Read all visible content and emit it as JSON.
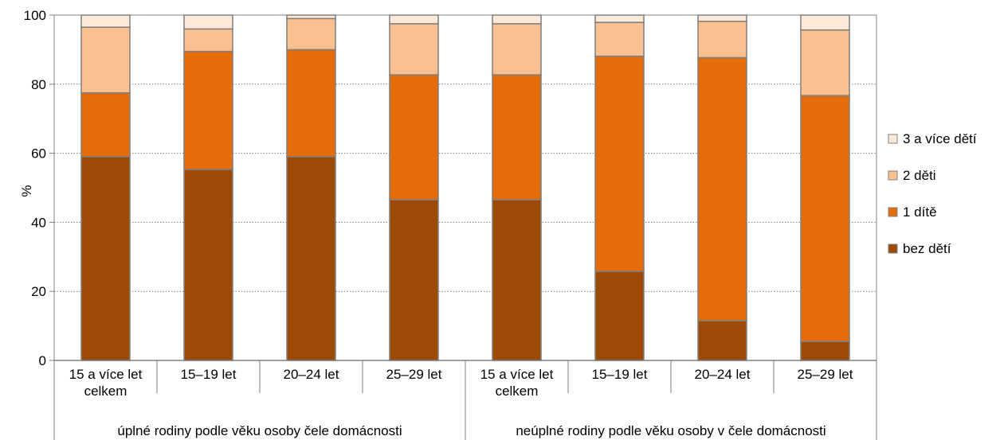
{
  "chart_data": {
    "type": "bar",
    "stacked": true,
    "ylabel": "%",
    "ylim": [
      0,
      100
    ],
    "yticks": [
      0,
      20,
      40,
      60,
      80,
      100
    ],
    "grid": true,
    "legend_position": "right",
    "groups": [
      "úplné rodiny podle věku osoby čele domácnosti",
      "neúplné rodiny podle věku osoby v čele domácnosti"
    ],
    "categories": [
      [
        "15 a více let",
        "celkem"
      ],
      [
        "15–19 let"
      ],
      [
        "20–24 let"
      ],
      [
        "25–29 let"
      ],
      [
        "15 a více let",
        "celkem"
      ],
      [
        "15–19 let"
      ],
      [
        "20–24 let"
      ],
      [
        "25–29 let"
      ]
    ],
    "series": [
      {
        "name": "bez dětí",
        "color": "#9c4a06",
        "values": [
          59,
          55.3,
          59,
          46.5,
          46.5,
          25.8,
          11.5,
          5.5
        ]
      },
      {
        "name": "1 dítě",
        "color": "#e46c0a",
        "values": [
          18.5,
          34.2,
          31,
          36.2,
          36.2,
          62.3,
          76.2,
          71.2
        ]
      },
      {
        "name": "2 děti",
        "color": "#fac090",
        "values": [
          19,
          6.5,
          9,
          14.8,
          14.8,
          9.8,
          10.5,
          19
        ]
      },
      {
        "name": "3 a více dětí",
        "color": "#fde9d9",
        "values": [
          3.5,
          4,
          1,
          2.5,
          2.5,
          2.1,
          1.8,
          4.3
        ]
      }
    ]
  }
}
